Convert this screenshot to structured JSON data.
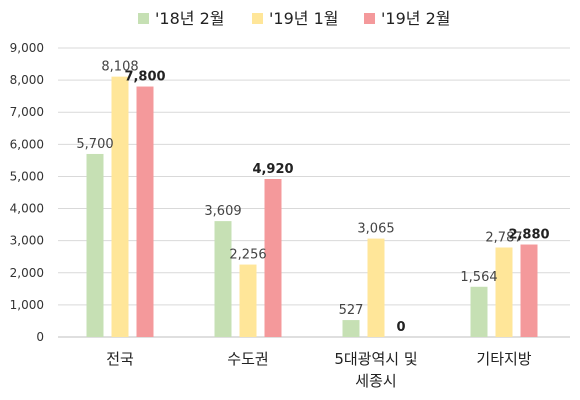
{
  "chart_data": {
    "type": "bar",
    "categories": [
      [
        "전국"
      ],
      [
        "수도권"
      ],
      [
        "5대광역시 및",
        "세종시"
      ],
      [
        "기타지방"
      ]
    ],
    "series": [
      {
        "name": "'18년 2월",
        "color": "#c6e0b4",
        "values": [
          5700,
          3609,
          527,
          1564
        ],
        "labels": [
          "5,700",
          "3,609",
          "527",
          "1,564"
        ],
        "bold_labels": false
      },
      {
        "name": "'19년 1월",
        "color": "#ffe699",
        "values": [
          8108,
          2256,
          3065,
          2787
        ],
        "labels": [
          "8,108",
          "2,256",
          "3,065",
          "2,787"
        ],
        "bold_labels": false
      },
      {
        "name": "'19년 2월",
        "color": "#f4999b",
        "values": [
          7800,
          4920,
          0,
          2880
        ],
        "labels": [
          "7,800",
          "4,920",
          "0",
          "2,880"
        ],
        "bold_labels": true
      }
    ],
    "ylim": [
      0,
      9000
    ],
    "yticks": [
      0,
      1000,
      2000,
      3000,
      4000,
      5000,
      6000,
      7000,
      8000,
      9000
    ],
    "ytick_labels": [
      "0",
      "1,000",
      "2,000",
      "3,000",
      "4,000",
      "5,000",
      "6,000",
      "7,000",
      "8,000",
      "9,000"
    ],
    "grid": true,
    "legend_position": "top-center",
    "title": "",
    "xlabel": "",
    "ylabel": ""
  }
}
